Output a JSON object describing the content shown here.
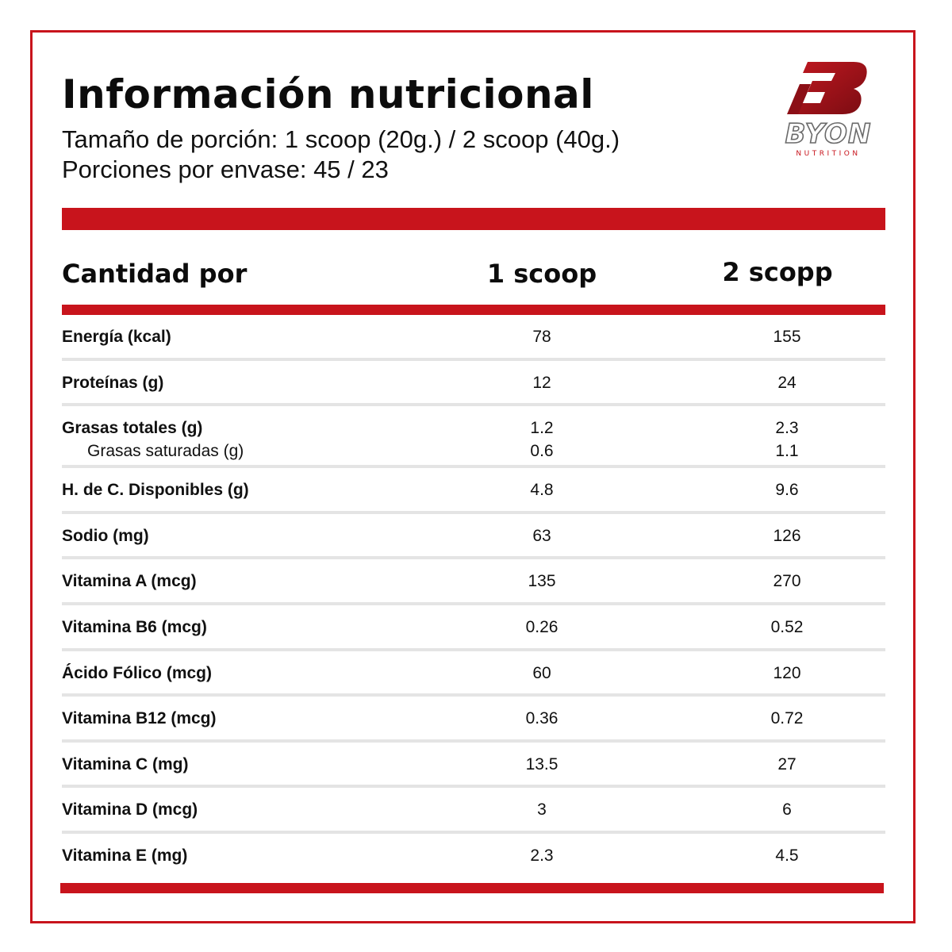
{
  "header": {
    "title": "Información nutricional",
    "serving_size": "Tamaño de porción: 1 scoop (20g.) / 2 scoop (40g.)",
    "servings_per_container": "Porciones por envase: 45 / 23"
  },
  "brand": {
    "name": "BYON",
    "tagline": "NUTRITION",
    "color": "#a8141c"
  },
  "table": {
    "header": {
      "label": "Cantidad por",
      "col1": "1 scoop",
      "col2": "2 scopp"
    },
    "rows": [
      {
        "label": "Energía (kcal)",
        "v1": "78",
        "v2": "155"
      },
      {
        "label": "Proteínas (g)",
        "v1": "12",
        "v2": "24"
      },
      {
        "label": "Grasas totales (g)",
        "v1": "1.2",
        "v2": "2.3",
        "sub": {
          "label": "Grasas saturadas (g)",
          "v1": "0.6",
          "v2": "1.1"
        }
      },
      {
        "label": "H. de C. Disponibles (g)",
        "v1": "4.8",
        "v2": "9.6"
      },
      {
        "label": "Sodio (mg)",
        "v1": "63",
        "v2": "126"
      },
      {
        "label": "Vitamina A (mcg)",
        "v1": "135",
        "v2": "270"
      },
      {
        "label": "Vitamina B6 (mcg)",
        "v1": "0.26",
        "v2": "0.52"
      },
      {
        "label": "Ácido Fólico (mcg)",
        "v1": "60",
        "v2": "120"
      },
      {
        "label": "Vitamina B12 (mcg)",
        "v1": "0.36",
        "v2": "0.72"
      },
      {
        "label": "Vitamina C (mg)",
        "v1": "13.5",
        "v2": "27"
      },
      {
        "label": "Vitamina D (mcg)",
        "v1": "3",
        "v2": "6"
      },
      {
        "label": "Vitamina E (mg)",
        "v1": "2.3",
        "v2": "4.5"
      }
    ]
  },
  "colors": {
    "accent": "#c8141c",
    "divider": "#e4e4e4"
  }
}
